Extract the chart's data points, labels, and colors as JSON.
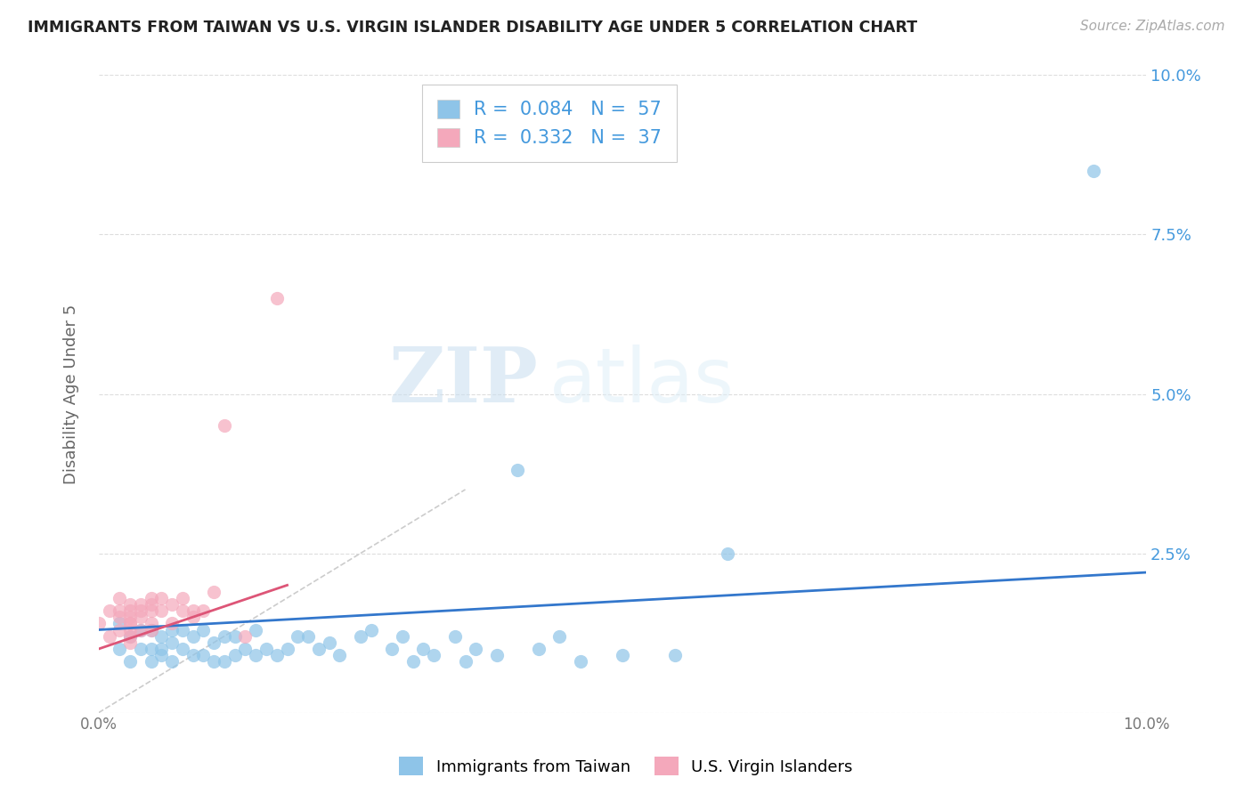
{
  "title": "IMMIGRANTS FROM TAIWAN VS U.S. VIRGIN ISLANDER DISABILITY AGE UNDER 5 CORRELATION CHART",
  "source": "Source: ZipAtlas.com",
  "ylabel": "Disability Age Under 5",
  "xlim": [
    0.0,
    0.1
  ],
  "ylim": [
    0.0,
    0.1
  ],
  "legend_R1": "0.084",
  "legend_N1": "57",
  "legend_R2": "0.332",
  "legend_N2": "37",
  "color_blue": "#8ec4e8",
  "color_pink": "#f4a8bb",
  "color_blue_text": "#4499dd",
  "trendline_blue_color": "#3377cc",
  "trendline_pink_color": "#dd5577",
  "trendline_diag_color": "#cccccc",
  "watermark_zip": "ZIP",
  "watermark_atlas": "atlas",
  "blue_scatter_x": [
    0.002,
    0.002,
    0.003,
    0.003,
    0.004,
    0.004,
    0.005,
    0.005,
    0.005,
    0.006,
    0.006,
    0.006,
    0.007,
    0.007,
    0.007,
    0.008,
    0.008,
    0.009,
    0.009,
    0.01,
    0.01,
    0.011,
    0.011,
    0.012,
    0.012,
    0.013,
    0.013,
    0.014,
    0.015,
    0.015,
    0.016,
    0.017,
    0.018,
    0.019,
    0.02,
    0.021,
    0.022,
    0.023,
    0.025,
    0.026,
    0.028,
    0.029,
    0.03,
    0.031,
    0.032,
    0.034,
    0.035,
    0.036,
    0.038,
    0.04,
    0.042,
    0.044,
    0.046,
    0.05,
    0.055,
    0.06,
    0.095
  ],
  "blue_scatter_y": [
    0.014,
    0.01,
    0.012,
    0.008,
    0.01,
    0.013,
    0.008,
    0.01,
    0.013,
    0.009,
    0.01,
    0.012,
    0.008,
    0.011,
    0.013,
    0.01,
    0.013,
    0.009,
    0.012,
    0.009,
    0.013,
    0.008,
    0.011,
    0.008,
    0.012,
    0.009,
    0.012,
    0.01,
    0.009,
    0.013,
    0.01,
    0.009,
    0.01,
    0.012,
    0.012,
    0.01,
    0.011,
    0.009,
    0.012,
    0.013,
    0.01,
    0.012,
    0.008,
    0.01,
    0.009,
    0.012,
    0.008,
    0.01,
    0.009,
    0.038,
    0.01,
    0.012,
    0.008,
    0.009,
    0.009,
    0.025,
    0.085
  ],
  "pink_scatter_x": [
    0.0,
    0.001,
    0.001,
    0.002,
    0.002,
    0.002,
    0.002,
    0.003,
    0.003,
    0.003,
    0.003,
    0.003,
    0.003,
    0.003,
    0.003,
    0.004,
    0.004,
    0.004,
    0.004,
    0.005,
    0.005,
    0.005,
    0.005,
    0.005,
    0.006,
    0.006,
    0.007,
    0.007,
    0.008,
    0.008,
    0.009,
    0.009,
    0.01,
    0.011,
    0.012,
    0.014,
    0.017
  ],
  "pink_scatter_y": [
    0.014,
    0.012,
    0.016,
    0.013,
    0.015,
    0.016,
    0.018,
    0.011,
    0.012,
    0.013,
    0.015,
    0.016,
    0.017,
    0.014,
    0.014,
    0.013,
    0.015,
    0.016,
    0.017,
    0.013,
    0.014,
    0.016,
    0.017,
    0.018,
    0.016,
    0.018,
    0.014,
    0.017,
    0.016,
    0.018,
    0.015,
    0.016,
    0.016,
    0.019,
    0.045,
    0.012,
    0.065
  ]
}
